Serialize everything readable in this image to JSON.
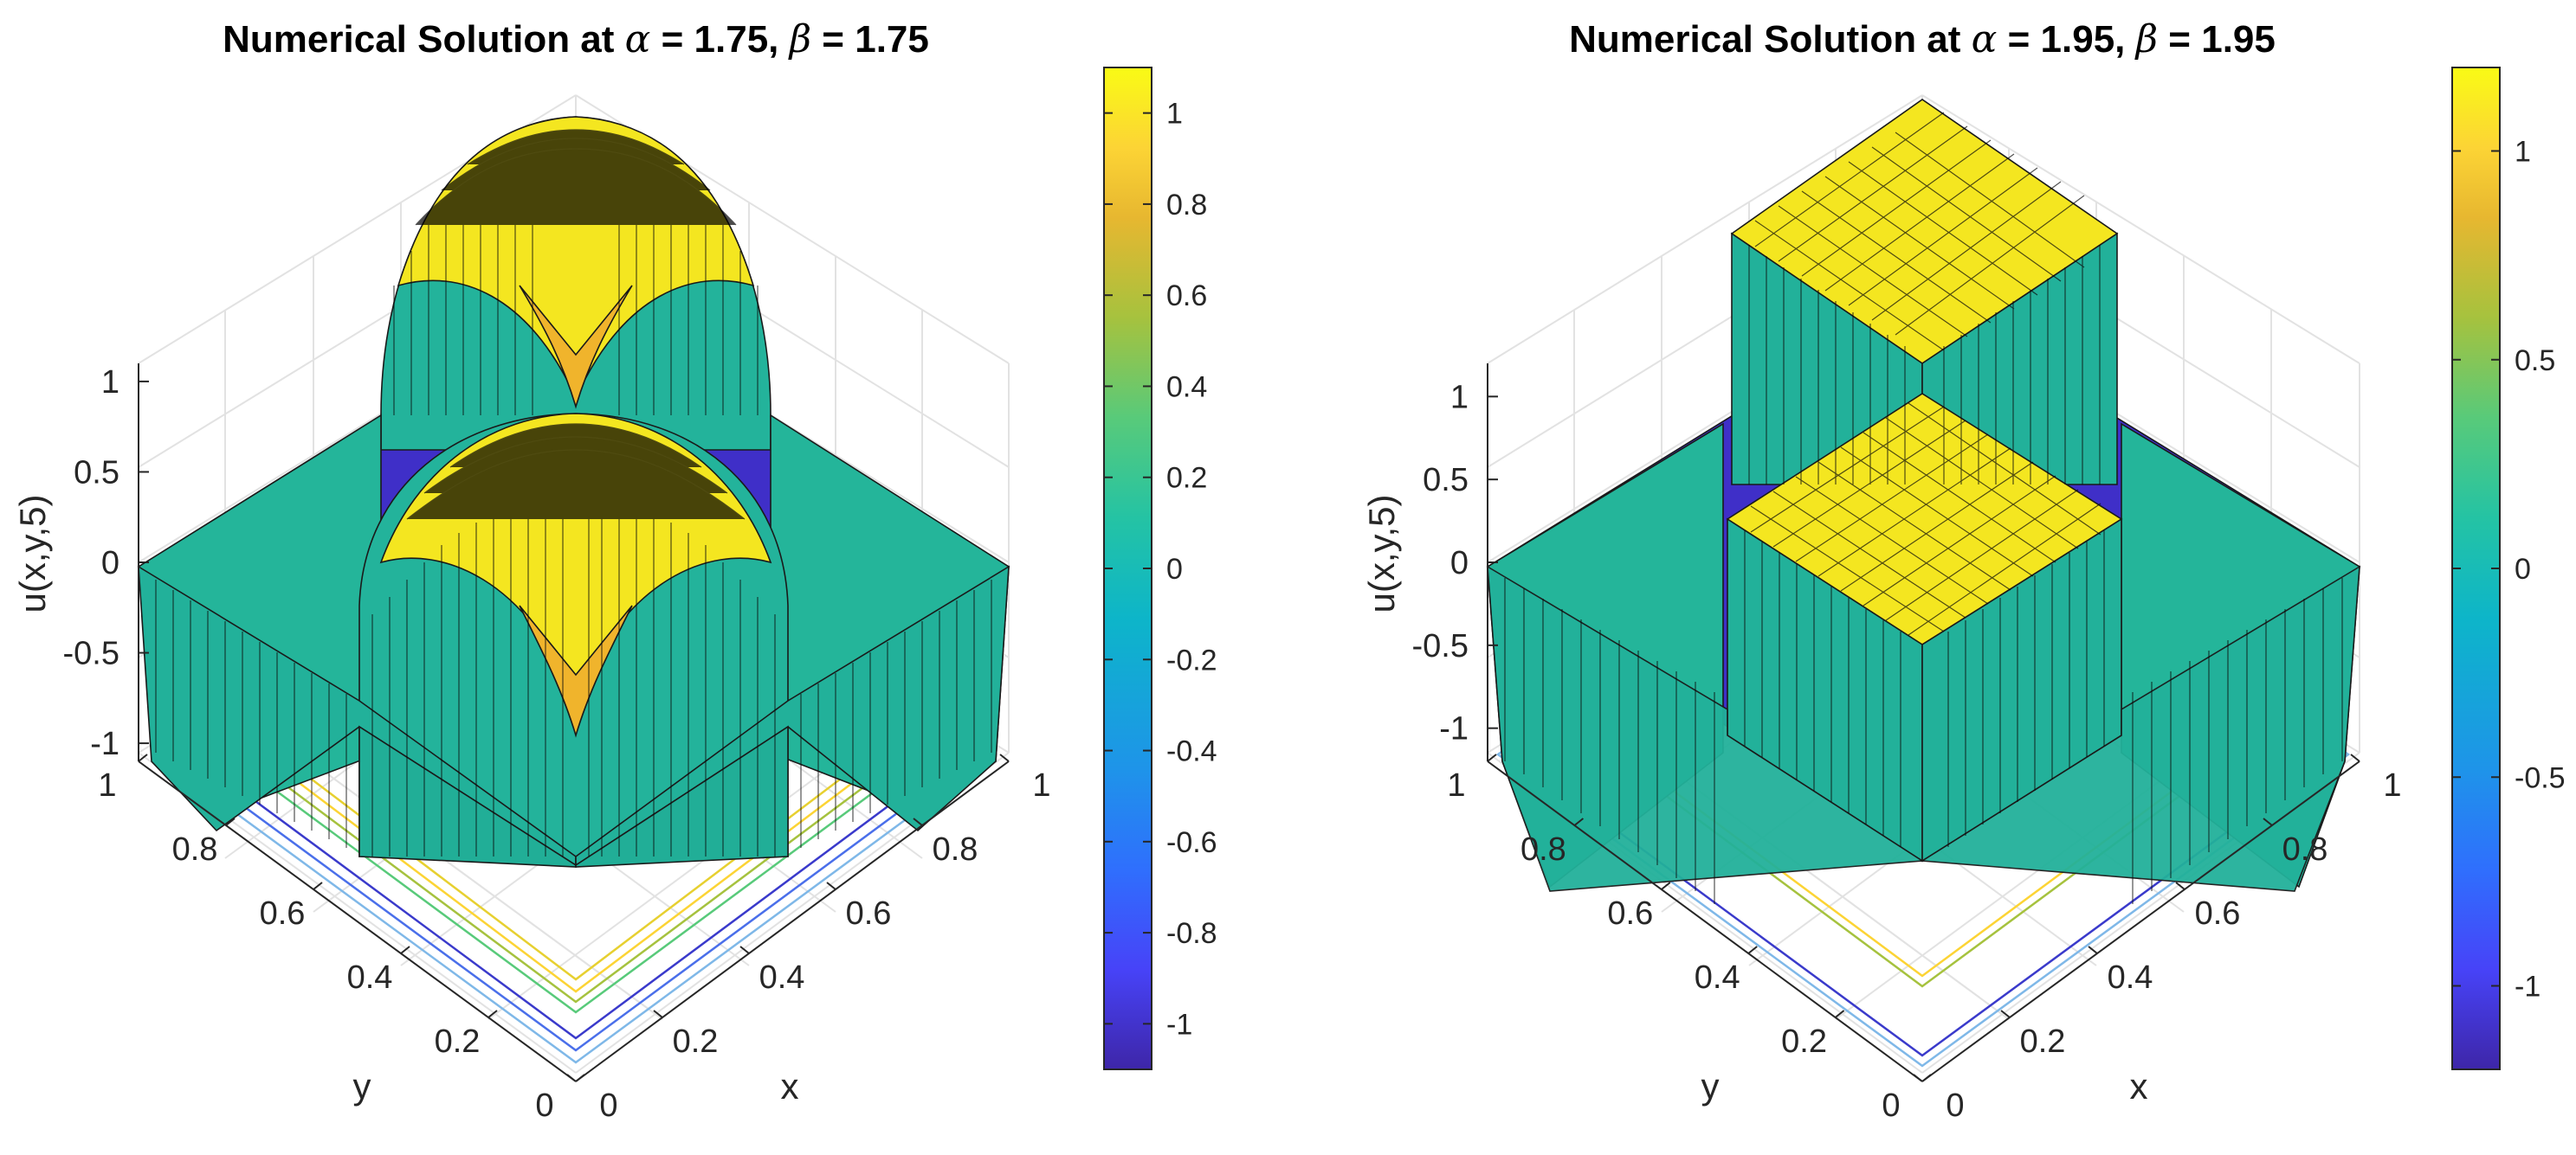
{
  "chart_data": [
    {
      "type": "surface3d",
      "title_prefix": "Numerical Solution at ",
      "alpha_symbol": "α",
      "beta_symbol": "β",
      "alpha": "1.75",
      "beta": "1.75",
      "xlabel": "x",
      "ylabel": "y",
      "zlabel": "u(x,y,5)",
      "xlim": [
        0,
        1
      ],
      "ylim": [
        0,
        1
      ],
      "zlim": [
        -1.1,
        1.1
      ],
      "x_ticks": [
        "0",
        "0.2",
        "0.4",
        "0.6",
        "0.8",
        "1"
      ],
      "y_ticks": [
        "0",
        "0.2",
        "0.4",
        "0.6",
        "0.8",
        "1"
      ],
      "z_ticks": [
        "-1",
        "-0.5",
        "0",
        "0.5",
        "1"
      ],
      "z_tick_values": [
        -1,
        -0.5,
        0,
        0.5,
        1
      ],
      "plateau_height": 1,
      "plateau_min": -1,
      "grid": true,
      "colorbar": {
        "range": [
          -1.1,
          1.1
        ],
        "ticks": [
          "-1",
          "-0.8",
          "-0.6",
          "-0.4",
          "-0.2",
          "0",
          "0.2",
          "0.4",
          "0.6",
          "0.8",
          "1"
        ],
        "tick_values": [
          -1,
          -0.8,
          -0.6,
          -0.4,
          -0.2,
          0,
          0.2,
          0.4,
          0.6,
          0.8,
          1
        ]
      }
    },
    {
      "type": "surface3d",
      "title_prefix": "Numerical Solution at ",
      "alpha_symbol": "α",
      "beta_symbol": "β",
      "alpha": "1.95",
      "beta": "1.95",
      "xlabel": "x",
      "ylabel": "y",
      "zlabel": "u(x,y,5)",
      "xlim": [
        0,
        1
      ],
      "ylim": [
        0,
        1
      ],
      "zlim": [
        -1.2,
        1.2
      ],
      "x_ticks": [
        "0",
        "0.2",
        "0.4",
        "0.6",
        "0.8",
        "1"
      ],
      "y_ticks": [
        "0",
        "0.2",
        "0.4",
        "0.6",
        "0.8",
        "1"
      ],
      "z_ticks": [
        "-1",
        "-0.5",
        "0",
        "0.5",
        "1"
      ],
      "z_tick_values": [
        -1,
        -0.5,
        0,
        0.5,
        1
      ],
      "plateau_height": 1.05,
      "plateau_min": -1.05,
      "grid": true,
      "colorbar": {
        "range": [
          -1.2,
          1.2
        ],
        "ticks": [
          "-1",
          "-0.5",
          "0",
          "0.5",
          "1"
        ],
        "tick_values": [
          -1,
          -0.5,
          0,
          0.5,
          1
        ]
      }
    }
  ],
  "colormap": [
    "#3e26a8",
    "#4743f8",
    "#2f6ffd",
    "#1e94e9",
    "#0db5c9",
    "#24c3a4",
    "#58ca7a",
    "#a6c23e",
    "#e7b730",
    "#fcd435",
    "#f9fb15"
  ]
}
